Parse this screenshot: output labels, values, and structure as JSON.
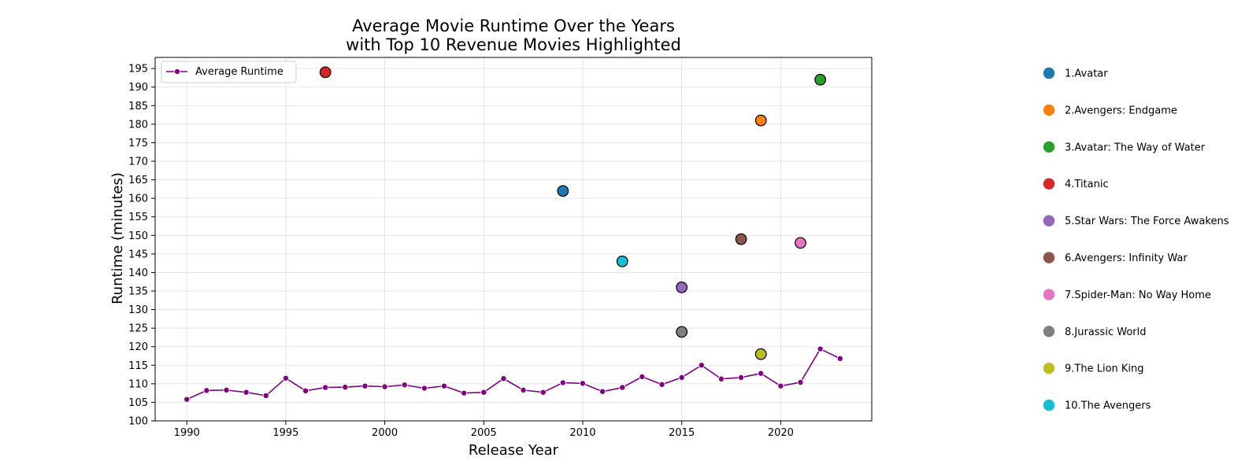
{
  "chart_data": {
    "type": "line",
    "title_lines": [
      "Average Movie Runtime Over the Years",
      "with Top 10 Revenue Movies Highlighted"
    ],
    "xlabel": "Release Year",
    "ylabel": "Runtime (minutes)",
    "xlim": [
      1988.4,
      2024.6
    ],
    "ylim": [
      100,
      198
    ],
    "xticks": [
      1990,
      1995,
      2000,
      2005,
      2010,
      2015,
      2020
    ],
    "yticks": [
      100,
      105,
      110,
      115,
      120,
      125,
      130,
      135,
      140,
      145,
      150,
      155,
      160,
      165,
      170,
      175,
      180,
      185,
      190,
      195
    ],
    "grid": true,
    "legend_position": "upper-left",
    "series": [
      {
        "name": "Average Runtime",
        "color": "#800080",
        "x": [
          1990,
          1991,
          1992,
          1993,
          1994,
          1995,
          1996,
          1997,
          1998,
          1999,
          2000,
          2001,
          2002,
          2003,
          2004,
          2005,
          2006,
          2007,
          2008,
          2009,
          2010,
          2011,
          2012,
          2013,
          2014,
          2015,
          2016,
          2017,
          2018,
          2019,
          2020,
          2021,
          2022,
          2023
        ],
        "y": [
          105.8,
          108.2,
          108.3,
          107.7,
          106.8,
          111.5,
          108.1,
          109.0,
          109.1,
          109.4,
          109.2,
          109.7,
          108.8,
          109.4,
          107.5,
          107.7,
          111.4,
          108.3,
          107.7,
          110.3,
          110.1,
          107.9,
          109.0,
          111.9,
          109.8,
          111.7,
          115.0,
          111.3,
          111.7,
          112.8,
          109.4,
          110.4,
          119.4,
          116.8
        ]
      }
    ],
    "highlighted_movies": [
      {
        "label": "1.Avatar",
        "year": 2009,
        "runtime": 162,
        "color": "#1f77b4"
      },
      {
        "label": "2.Avengers: Endgame",
        "year": 2019,
        "runtime": 181,
        "color": "#ff7f0e"
      },
      {
        "label": "3.Avatar: The Way of Water",
        "year": 2022,
        "runtime": 192,
        "color": "#2ca02c"
      },
      {
        "label": "4.Titanic",
        "year": 1997,
        "runtime": 194,
        "color": "#d62728"
      },
      {
        "label": "5.Star Wars: The Force Awakens",
        "year": 2015,
        "runtime": 136,
        "color": "#9467bd"
      },
      {
        "label": "6.Avengers: Infinity War",
        "year": 2018,
        "runtime": 149,
        "color": "#8c564b"
      },
      {
        "label": "7.Spider-Man: No Way Home",
        "year": 2021,
        "runtime": 148,
        "color": "#e377c2"
      },
      {
        "label": "8.Jurassic World",
        "year": 2015,
        "runtime": 124,
        "color": "#7f7f7f"
      },
      {
        "label": "9.The Lion King",
        "year": 2019,
        "runtime": 118,
        "color": "#bcbd22"
      },
      {
        "label": "10.The Avengers",
        "year": 2012,
        "runtime": 143,
        "color": "#17becf"
      }
    ]
  }
}
